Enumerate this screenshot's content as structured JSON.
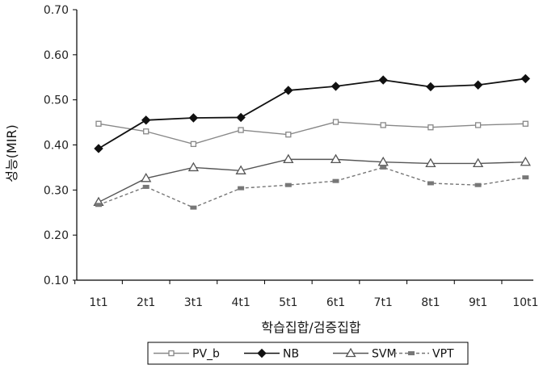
{
  "chart_data": {
    "type": "line",
    "title": "",
    "xlabel": "학습집합/검증집합",
    "ylabel": "성능(MIR)",
    "ylim": [
      0.1,
      0.7
    ],
    "yticks": [
      "0.10",
      "0.20",
      "0.30",
      "0.40",
      "0.50",
      "0.60",
      "0.70"
    ],
    "grid": false,
    "legend_position": "bottom",
    "categories": [
      "1t1",
      "2t1",
      "3t1",
      "4t1",
      "5t1",
      "6t1",
      "7t1",
      "8t1",
      "9t1",
      "10t1"
    ],
    "series": [
      {
        "name": "PV_b",
        "marker": "square-open",
        "line": "solid",
        "color": "#888888",
        "values": [
          0.447,
          0.43,
          0.402,
          0.433,
          0.423,
          0.451,
          0.444,
          0.439,
          0.444,
          0.447
        ]
      },
      {
        "name": "NB",
        "marker": "diamond-filled",
        "line": "solid",
        "color": "#111111",
        "values": [
          0.392,
          0.455,
          0.46,
          0.461,
          0.521,
          0.53,
          0.544,
          0.529,
          0.533,
          0.547
        ]
      },
      {
        "name": "SVM",
        "marker": "triangle-open",
        "line": "solid",
        "color": "#555555",
        "values": [
          0.273,
          0.326,
          0.35,
          0.343,
          0.368,
          0.368,
          0.362,
          0.359,
          0.359,
          0.362
        ]
      },
      {
        "name": "VPT",
        "marker": "square-filled",
        "line": "dashed",
        "color": "#777777",
        "values": [
          0.267,
          0.307,
          0.261,
          0.304,
          0.311,
          0.32,
          0.35,
          0.315,
          0.311,
          0.328
        ]
      }
    ]
  }
}
